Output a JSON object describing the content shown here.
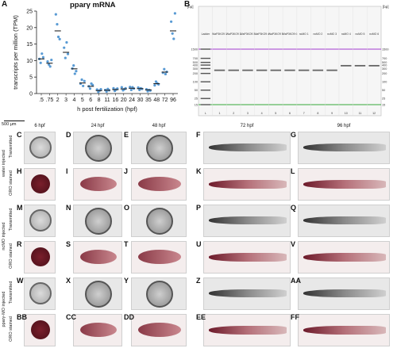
{
  "panelA": {
    "letter": "A",
    "chart_data": {
      "type": "scatter",
      "title": "pparγ mRNA",
      "xlabel": "h post fertilization (hpf)",
      "ylabel": "transcripts per million (TPM)",
      "ylim": [
        0,
        25
      ],
      "yticks": [
        "0",
        "5",
        "10",
        "15",
        "20",
        "25"
      ],
      "categories": [
        ".5",
        ".75",
        "2",
        "3",
        "4",
        "5",
        "6",
        "8",
        "11",
        "16",
        "20",
        "24",
        "30",
        "35",
        "48",
        "72",
        "96"
      ],
      "means": [
        10.5,
        9.2,
        19,
        12.5,
        7.5,
        3.2,
        2.2,
        0.9,
        1,
        1.2,
        1.4,
        1.6,
        1.5,
        1.1,
        3,
        6.5,
        19
      ],
      "points": [
        [
          10.5,
          9.3,
          12.1,
          11.0
        ],
        [
          9.7,
          8.8,
          8.2,
          10.2
        ],
        [
          24,
          21,
          17.2,
          16.5
        ],
        [
          13.9,
          10.8,
          15.5,
          12.0
        ],
        [
          7.6,
          8.5,
          6.0,
          6.8
        ],
        [
          3.0,
          4.2,
          2.3,
          3.8
        ],
        [
          2.2,
          1.5,
          3.0,
          2.6
        ],
        [
          1.2,
          0.5,
          0.9,
          1.3
        ],
        [
          1.1,
          0.6,
          1.4,
          1.0
        ],
        [
          1.6,
          0.8,
          1.2,
          1.5
        ],
        [
          1.9,
          1.0,
          1.3,
          1.6
        ],
        [
          2.0,
          1.1,
          1.9,
          1.5
        ],
        [
          1.8,
          1.1,
          1.6,
          1.4
        ],
        [
          1.3,
          0.7,
          1.1,
          0.9
        ],
        [
          2.5,
          3.6,
          3.1,
          2.8
        ],
        [
          6.3,
          7.4,
          5.9,
          6.6
        ],
        [
          21.8,
          18.2,
          16.6,
          24.3
        ]
      ],
      "colors": {
        "points": "#5a9bd4",
        "mean": "#222222"
      }
    }
  },
  "panelB": {
    "letter": "B",
    "unit_left": "[bp]",
    "unit_right": "[bp]",
    "ladder_labels": [
      "1500",
      "700",
      "500",
      "400",
      "300",
      "200",
      "100",
      "50",
      "25",
      "15"
    ],
    "lane_headers": [
      "Ladder",
      "WaP3KO9 1",
      "WaP3KO9 2",
      "WaP3KO9 3",
      "WaP3KO9 4",
      "WaP3KO9 5",
      "WaP3KO9 6",
      "ncMO 1",
      "ncMO 2",
      "ncMO 3",
      "ncMO 4",
      "ncMO 5",
      "ncMO 6"
    ],
    "lane_numbers": [
      "L",
      "1",
      "2",
      "3",
      "4",
      "5",
      "6",
      "7",
      "8",
      "9",
      "10",
      "11",
      "12"
    ],
    "band_size_low": 260,
    "band_size_high": 380
  },
  "scale_bar": "500 μm",
  "columns": [
    "6 hpf",
    "24 hpf",
    "48 hpf",
    "72 hpf",
    "96 hpf"
  ],
  "groups": [
    {
      "name": "water injected",
      "rows": [
        {
          "stain": "Transmitted",
          "letters": [
            "C",
            "D",
            "E",
            "F",
            "G"
          ]
        },
        {
          "stain": "ORO stained",
          "letters": [
            "H",
            "I",
            "J",
            "K",
            "L"
          ]
        }
      ]
    },
    {
      "name": "ncMO injected",
      "rows": [
        {
          "stain": "Transmitted",
          "letters": [
            "M",
            "N",
            "O",
            "P",
            "Q"
          ]
        },
        {
          "stain": "ORO stained",
          "letters": [
            "R",
            "S",
            "T",
            "U",
            "V"
          ]
        }
      ]
    },
    {
      "name": "pparγ-MO injected",
      "rows": [
        {
          "stain": "Transmitted",
          "letters": [
            "W",
            "X",
            "Y",
            "Z",
            "AA"
          ]
        },
        {
          "stain": "ORO stained",
          "letters": [
            "BB",
            "CC",
            "DD",
            "EE",
            "FF"
          ]
        }
      ]
    }
  ]
}
